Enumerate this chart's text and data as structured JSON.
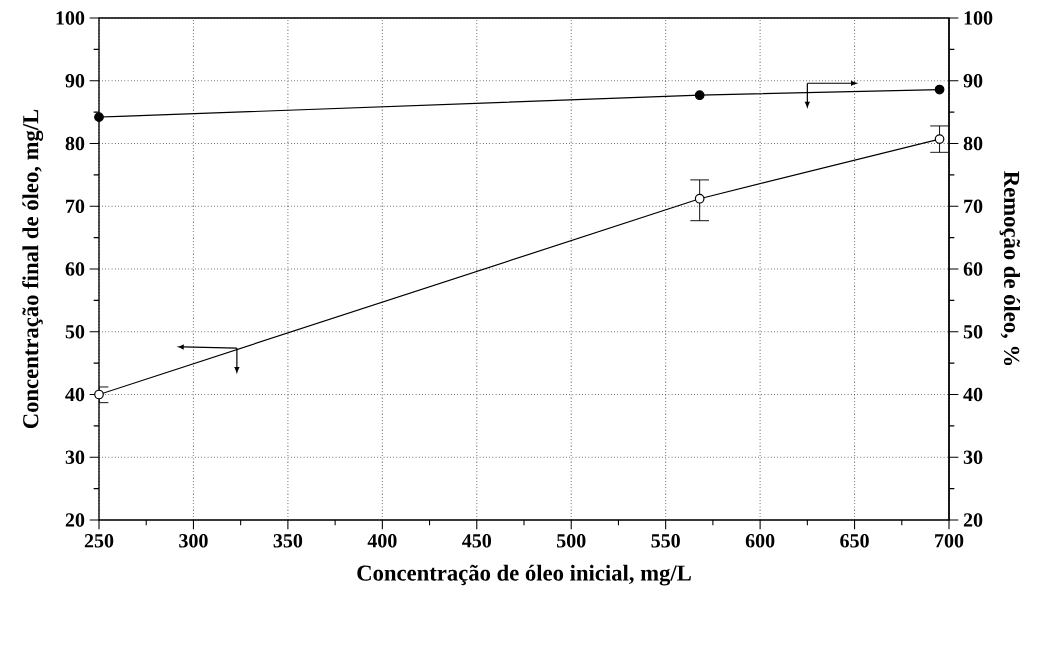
{
  "chart_data": {
    "type": "line",
    "xlabel": "Concentração de óleo inicial, mg/L",
    "ylabel": "Concentração final de óleo, mg/L",
    "y2label": "Remoção de óleo, %",
    "x": [
      250,
      568,
      695
    ],
    "series": [
      {
        "color": "#000000",
        "values": [
          40,
          71.2,
          80.7
        ],
        "errors": [
          [
            38.7,
            41.2
          ],
          [
            67.7,
            74.2
          ],
          [
            78.6,
            82.8
          ]
        ]
      },
      {
        "color": "#000000",
        "axis": "y2",
        "values": [
          84.2,
          87.7,
          88.6
        ]
      }
    ],
    "xlim": [
      250,
      700
    ],
    "xticks": [
      250,
      300,
      350,
      400,
      450,
      500,
      550,
      600,
      650,
      700
    ],
    "ylim": [
      20,
      100
    ],
    "yticks": [
      20,
      30,
      40,
      50,
      60,
      70,
      80,
      90,
      100
    ],
    "y2lim": [
      20,
      100
    ],
    "y2ticks": [
      20,
      30,
      40,
      50,
      60,
      70,
      80,
      90,
      100
    ],
    "grid": true,
    "marker": "circle",
    "line_style": "solid"
  }
}
